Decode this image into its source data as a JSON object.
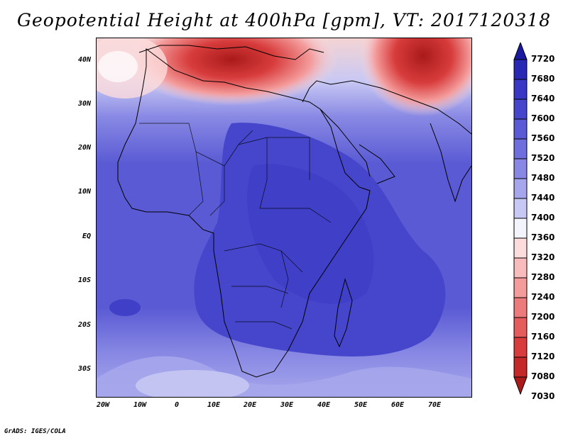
{
  "title": "Geopotential Height at 400hPa [gpm], VT: 2017120318",
  "credit": "GrADS: IGES/COLA",
  "map": {
    "region": "Africa",
    "lat_range": [
      -36,
      45
    ],
    "lon_range": [
      -22,
      80
    ],
    "lat_ticks": [
      "40N",
      "30N",
      "20N",
      "10N",
      "EQ",
      "10S",
      "20S",
      "30S"
    ],
    "lon_ticks": [
      "20W",
      "10W",
      "0",
      "10E",
      "20E",
      "30E",
      "40E",
      "50E",
      "60E",
      "70E"
    ]
  },
  "colorbar": {
    "levels": [
      "7720",
      "7680",
      "7640",
      "7600",
      "7560",
      "7520",
      "7480",
      "7440",
      "7400",
      "7360",
      "7320",
      "7280",
      "7240",
      "7200",
      "7160",
      "7120",
      "7080",
      "7030"
    ],
    "colors": [
      "#1a1aa0",
      "#2828b4",
      "#3838c4",
      "#4646cc",
      "#5a5ad4",
      "#6e6edc",
      "#8888e4",
      "#a6a6ec",
      "#c8c8f4",
      "#f4f4fc",
      "#fcdcdc",
      "#f8bcbc",
      "#f49c9c",
      "#ec7c7c",
      "#e45c5c",
      "#d83c3c",
      "#c42828",
      "#aa1a1a"
    ]
  }
}
